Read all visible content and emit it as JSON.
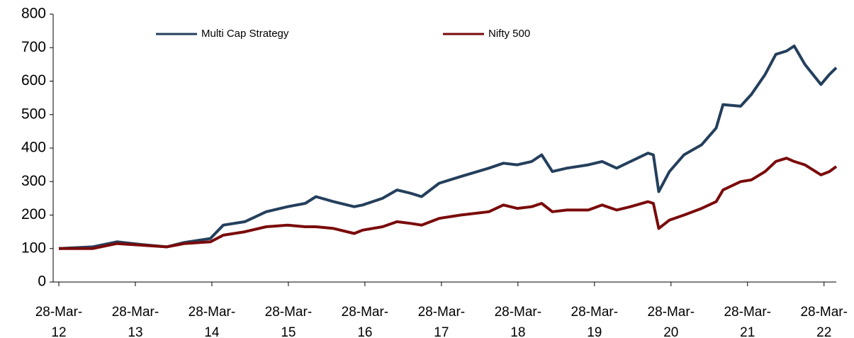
{
  "chart_data": {
    "type": "line",
    "x": [
      2012.24,
      2012.68,
      2013.0,
      2013.32,
      2013.65,
      2013.88,
      2014.22,
      2014.39,
      2014.67,
      2014.95,
      2015.23,
      2015.46,
      2015.6,
      2015.83,
      2016.1,
      2016.21,
      2016.47,
      2016.66,
      2016.84,
      2016.98,
      2017.21,
      2017.49,
      2017.86,
      2018.05,
      2018.23,
      2018.42,
      2018.55,
      2018.69,
      2018.88,
      2019.16,
      2019.34,
      2019.53,
      2019.71,
      2019.94,
      2020.01,
      2020.08,
      2020.22,
      2020.41,
      2020.64,
      2020.83,
      2020.92,
      2021.15,
      2021.29,
      2021.47,
      2021.61,
      2021.75,
      2021.85,
      2021.99,
      2022.13,
      2022.2,
      2022.31,
      2022.4
    ],
    "series": [
      {
        "name": "Multi Cap Strategy",
        "color": "#243f5c",
        "values": [
          100,
          105,
          120,
          112,
          105,
          118,
          130,
          170,
          180,
          210,
          225,
          235,
          255,
          240,
          225,
          230,
          250,
          275,
          265,
          255,
          295,
          315,
          340,
          355,
          350,
          360,
          380,
          330,
          340,
          350,
          360,
          340,
          360,
          385,
          380,
          270,
          330,
          380,
          410,
          460,
          530,
          525,
          560,
          620,
          680,
          690,
          705,
          650,
          610,
          590,
          620,
          640
        ]
      },
      {
        "name": "Nifty 500",
        "color": "#7a0a0a",
        "values": [
          100,
          100,
          115,
          110,
          105,
          115,
          120,
          140,
          150,
          165,
          170,
          165,
          165,
          160,
          145,
          155,
          165,
          180,
          175,
          170,
          190,
          200,
          210,
          230,
          220,
          225,
          235,
          210,
          215,
          215,
          230,
          215,
          225,
          240,
          235,
          160,
          185,
          200,
          220,
          240,
          275,
          300,
          305,
          330,
          360,
          370,
          360,
          350,
          330,
          320,
          330,
          345
        ]
      }
    ],
    "xlim": [
      2012.166,
      2022.4
    ],
    "xticks": [
      {
        "value": 2012.24,
        "label": "28-Mar-12"
      },
      {
        "value": 2013.24,
        "label": "28-Mar-13"
      },
      {
        "value": 2014.24,
        "label": "28-Mar-14"
      },
      {
        "value": 2015.24,
        "label": "28-Mar-15"
      },
      {
        "value": 2016.24,
        "label": "28-Mar-16"
      },
      {
        "value": 2017.24,
        "label": "28-Mar-17"
      },
      {
        "value": 2018.24,
        "label": "28-Mar-18"
      },
      {
        "value": 2019.24,
        "label": "28-Mar-19"
      },
      {
        "value": 2020.24,
        "label": "28-Mar-20"
      },
      {
        "value": 2021.24,
        "label": "28-Mar-21"
      },
      {
        "value": 2022.24,
        "label": "28-Mar-22"
      }
    ],
    "ylim": [
      0,
      800
    ],
    "yticks": [
      0,
      100,
      200,
      300,
      400,
      500,
      600,
      700,
      800
    ],
    "grid": false,
    "legend": "top"
  }
}
